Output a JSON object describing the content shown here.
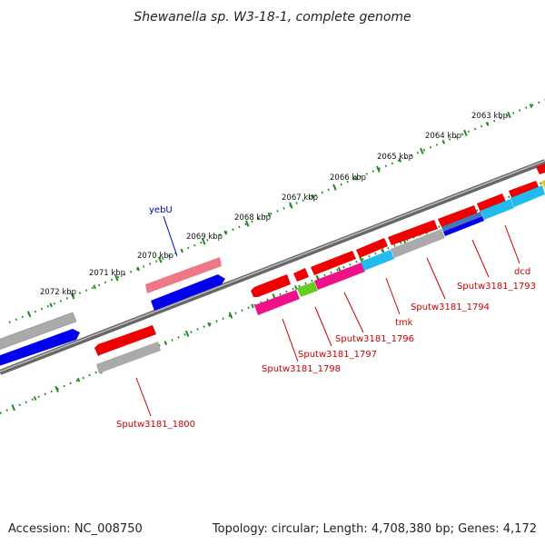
{
  "title": "Shewanella sp. W3-18-1, complete genome",
  "footer": {
    "accession": "Accession: NC_008750",
    "summary": "Topology: circular; Length: 4,708,380 bp; Genes: 4,172"
  },
  "scale_labels": [
    "2063 kbp",
    "2064 kbp",
    "2065 kbp",
    "2066 kbp",
    "2067 kbp",
    "2068 kbp",
    "2069 kbp",
    "2070 kbp",
    "2071 kbp",
    "2072 kbp"
  ],
  "gene_labels": [
    {
      "name": "yebU",
      "color": "#0000cc"
    },
    {
      "name": "dcd",
      "color": "#cc0000"
    },
    {
      "name": "Sputw3181_1793",
      "color": "#cc0000"
    },
    {
      "name": "Sputw3181_1794",
      "color": "#cc0000"
    },
    {
      "name": "tmk",
      "color": "#cc0000"
    },
    {
      "name": "Sputw3181_1796",
      "color": "#cc0000"
    },
    {
      "name": "Sputw3181_1797",
      "color": "#cc0000"
    },
    {
      "name": "Sputw3181_1798",
      "color": "#cc0000"
    },
    {
      "name": "Sputw3181_1800",
      "color": "#cc0000"
    }
  ],
  "colors": {
    "backbone": "#777777",
    "scale_ticks": "#228b22",
    "cds_red": "#ee0000",
    "cds_blue": "#0000ee",
    "trna_pink": "#ee7788",
    "gray_gene": "#aaaaaa",
    "magenta": "#ee1188",
    "cyan": "#22bbee",
    "green": "#66cc22"
  }
}
